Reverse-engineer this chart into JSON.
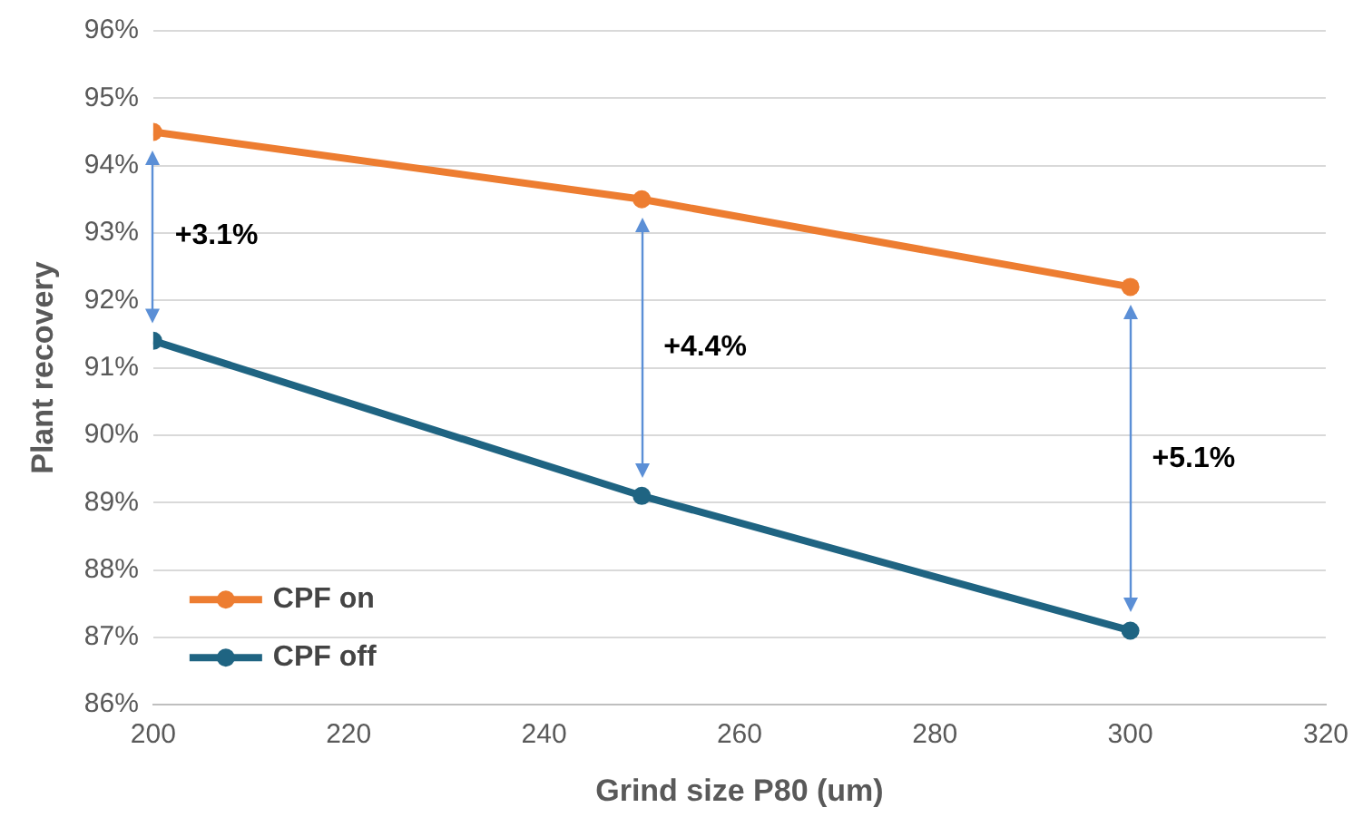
{
  "chart_data": {
    "type": "line",
    "xlabel": "Grind size P80 (um)",
    "ylabel": "Plant recovery",
    "x": [
      200,
      250,
      300
    ],
    "series": [
      {
        "name": "CPF on",
        "color": "#ed7d31",
        "values": [
          94.5,
          93.5,
          92.2
        ]
      },
      {
        "name": "CPF off",
        "color": "#1f6482",
        "values": [
          91.4,
          89.1,
          87.1
        ]
      }
    ],
    "xlim": [
      200,
      320
    ],
    "xticks": [
      200,
      220,
      240,
      260,
      280,
      300,
      320
    ],
    "ylim": [
      86,
      96
    ],
    "yticks": [
      {
        "value": 86,
        "label": "86%"
      },
      {
        "value": 87,
        "label": "87%"
      },
      {
        "value": 88,
        "label": "88%"
      },
      {
        "value": 89,
        "label": "89%"
      },
      {
        "value": 90,
        "label": "90%"
      },
      {
        "value": 91,
        "label": "91%"
      },
      {
        "value": 92,
        "label": "92%"
      },
      {
        "value": 93,
        "label": "93%"
      },
      {
        "value": 94,
        "label": "94%"
      },
      {
        "value": 95,
        "label": "95%"
      },
      {
        "value": 96,
        "label": "96%"
      }
    ],
    "grid": "y",
    "legend": "bottom left",
    "marker": "circle",
    "line_style": "solid",
    "annotations": [
      "+3.1%",
      "+4.4%",
      "+5.1%"
    ]
  }
}
